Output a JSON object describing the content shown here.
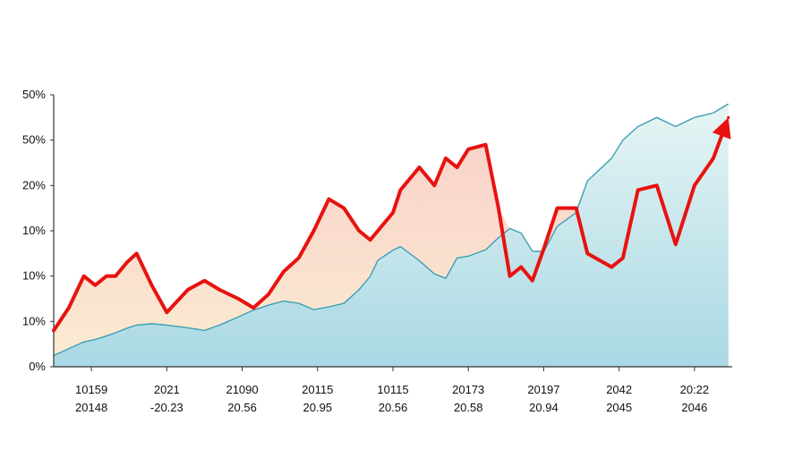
{
  "chart_data": {
    "type": "area",
    "title": "",
    "xlabel": "",
    "ylabel": "",
    "ylim": [
      0,
      60
    ],
    "grid": false,
    "legend": "none",
    "y_tick_labels": [
      "0%",
      "10%",
      "10%",
      "10%",
      "20%",
      "50%",
      "50%"
    ],
    "x_tick_labels": [
      [
        "10159",
        "20148"
      ],
      [
        "2021",
        "-20.23"
      ],
      [
        "21090",
        "20.56"
      ],
      [
        "20115",
        "20.95"
      ],
      [
        "10115",
        "20.56"
      ],
      [
        "20173",
        "20.58"
      ],
      [
        "20197",
        "20.94"
      ],
      [
        "2042",
        "2045"
      ],
      [
        "20:22",
        "2046"
      ]
    ],
    "x_tick_positions": [
      0.5,
      1.5,
      2.5,
      3.5,
      4.5,
      5.5,
      6.5,
      7.5,
      8.5
    ],
    "x": [
      0,
      0.2,
      0.4,
      0.55,
      0.7,
      0.82,
      0.97,
      1.1,
      1.3,
      1.5,
      1.78,
      2.0,
      2.2,
      2.45,
      2.65,
      2.85,
      3.05,
      3.25,
      3.45,
      3.65,
      3.85,
      4.05,
      4.2,
      4.3,
      4.5,
      4.6,
      4.85,
      5.05,
      5.2,
      5.35,
      5.5,
      5.73,
      5.9,
      6.05,
      6.2,
      6.35,
      6.5,
      6.68,
      6.93,
      7.08,
      7.4,
      7.55,
      7.75,
      8.0,
      8.25,
      8.5,
      8.75,
      8.95
    ],
    "series": [
      {
        "values": [
          8,
          13,
          20,
          18,
          20,
          20,
          23,
          25,
          18,
          12,
          17,
          19,
          17,
          15,
          13,
          16,
          21,
          24,
          30,
          37,
          35,
          30,
          28,
          30,
          34,
          39,
          44,
          40,
          46,
          44,
          48,
          49,
          35,
          20,
          22,
          19,
          26,
          35,
          35,
          25,
          22,
          24,
          39,
          40,
          27,
          40,
          46,
          55
        ],
        "color": "#e8120f"
      },
      {
        "values": [
          2.5,
          4,
          5.5,
          6,
          6.8,
          7.5,
          8.5,
          9.2,
          9.5,
          9.2,
          8.6,
          8,
          9.2,
          11,
          12.5,
          13.6,
          14.5,
          14,
          12.6,
          13.2,
          14,
          17,
          20,
          23.5,
          25.7,
          26.5,
          23.4,
          20.5,
          19.5,
          24,
          24.4,
          25.8,
          28.5,
          30.5,
          29.5,
          25.5,
          25.4,
          31,
          34,
          41,
          46,
          50,
          53,
          55,
          53,
          55,
          56,
          58
        ],
        "color": "#b6dde6"
      }
    ],
    "colors": {
      "line": "#e8120f",
      "lower_area_top": "#e6f5f4",
      "lower_area_bottom": "#a9d8e4",
      "lower_line": "#3d9fb4",
      "band_top": "#f7c9c2",
      "band_bottom": "#fbe8cc"
    }
  }
}
